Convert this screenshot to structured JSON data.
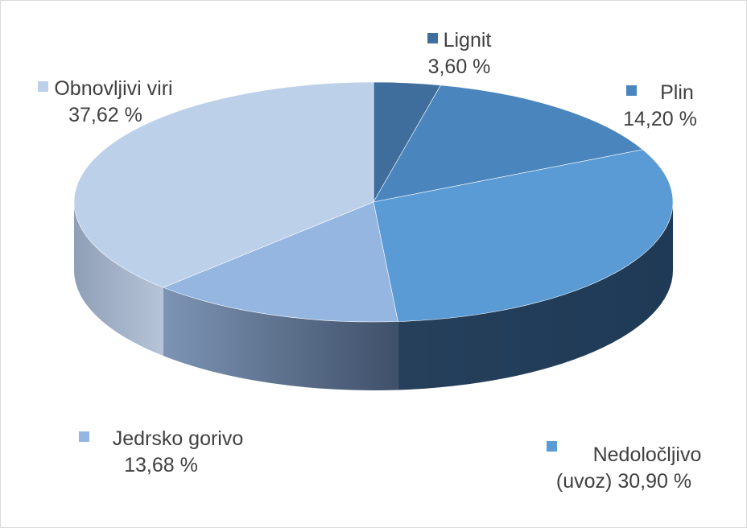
{
  "chart_data": {
    "type": "pie",
    "style": "3d",
    "title": "",
    "slices": [
      {
        "label": "Lignit",
        "value": 3.6,
        "value_text": "3,60 %",
        "color": "#3f6e9c"
      },
      {
        "label": "Plin",
        "value": 14.2,
        "value_text": "14,20 %",
        "color": "#4a86bd"
      },
      {
        "label": "Nedoločljivo (uvoz)",
        "value": 30.9,
        "value_text": "30,90 %",
        "color": "#5b9bd5"
      },
      {
        "label": "Jedrsko gorivo",
        "value": 13.68,
        "value_text": "13,68 %",
        "color": "#95b6e0"
      },
      {
        "label": "Obnovljivi viri",
        "value": 37.62,
        "value_text": "37,62 %",
        "color": "#bdd0e9"
      }
    ],
    "legend": "none",
    "data_labels": "category name and value, with color key"
  },
  "labels": {
    "lignit": {
      "name": "Lignit",
      "pct": "3,60 %"
    },
    "plin": {
      "name": "Plin",
      "pct": "14,20 %"
    },
    "nedolocljivo": {
      "name": "Nedoločljivo",
      "pct": "(uvoz) 30,90 %"
    },
    "jedrsko": {
      "name": "Jedrsko gorivo",
      "pct": "13,68 %"
    },
    "obnovljivi": {
      "name": "Obnovljivi viri",
      "pct": "37,62 %"
    }
  }
}
